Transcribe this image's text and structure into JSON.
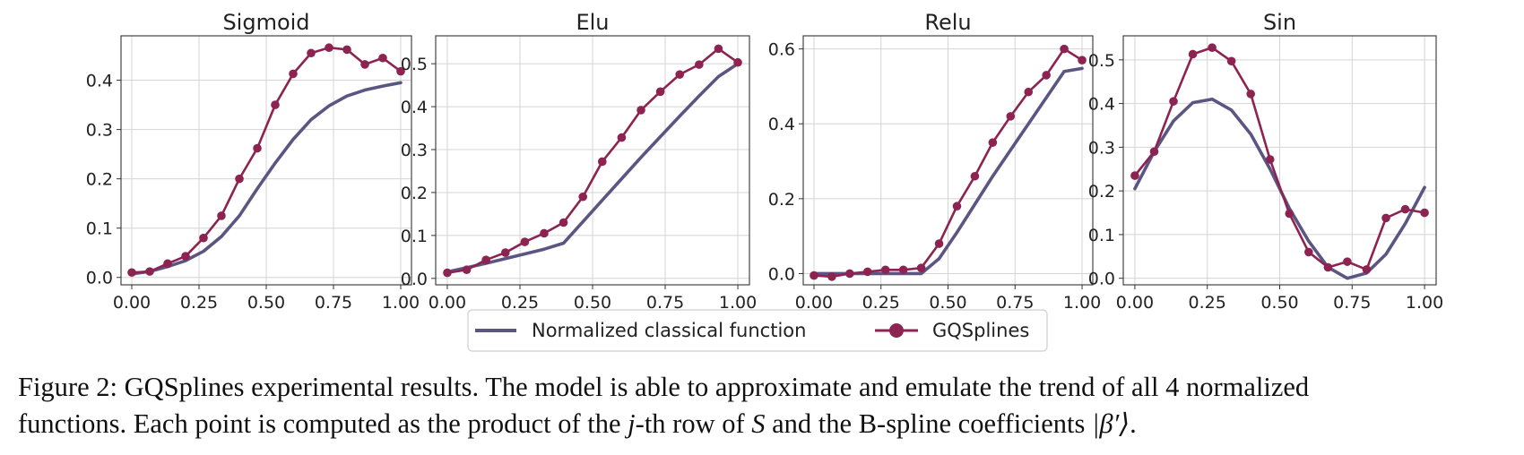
{
  "figure": {
    "caption": {
      "line1": "Figure 2: GQSplines experimental results. The model is able to approximate and emulate the trend of all 4 normalized",
      "line2_a": "functions. Each point is computed as the product of the ",
      "line2_j": "j",
      "line2_b": "-th row of ",
      "line2_S": "S",
      "line2_c": " and the B-spline coefficients ",
      "line2_beta": "|β′⟩",
      "line2_d": "."
    }
  },
  "legend": {
    "placement": "bottom-center",
    "entries": [
      "Normalized classical function",
      "GQSplines"
    ]
  },
  "colors": {
    "classical": "#5b5582",
    "gqsplines": "#8c2350",
    "grid": "#d4d4d4"
  },
  "chart_data": [
    {
      "type": "line",
      "title": "Sigmoid",
      "xlim": [
        -0.04,
        1.04
      ],
      "ylim": [
        -0.015,
        0.49
      ],
      "xticks": [
        "0.00",
        "0.25",
        "0.50",
        "0.75",
        "1.00"
      ],
      "xtick_values": [
        0,
        0.25,
        0.5,
        0.75,
        1.0
      ],
      "yticks": [
        "0.0",
        "0.1",
        "0.2",
        "0.3",
        "0.4"
      ],
      "ytick_values": [
        0,
        0.1,
        0.2,
        0.3,
        0.4
      ],
      "grid": true,
      "x": [
        0,
        0.0667,
        0.1333,
        0.2,
        0.2667,
        0.3333,
        0.4,
        0.4667,
        0.5333,
        0.6,
        0.6667,
        0.7333,
        0.8,
        0.8667,
        0.9333,
        1.0
      ],
      "series": [
        {
          "name": "Normalized classical function",
          "values": [
            0.007,
            0.012,
            0.022,
            0.034,
            0.053,
            0.083,
            0.125,
            0.18,
            0.232,
            0.28,
            0.32,
            0.348,
            0.368,
            0.38,
            0.388,
            0.395
          ]
        },
        {
          "name": "GQSplines",
          "values": [
            0.01,
            0.012,
            0.028,
            0.043,
            0.08,
            0.125,
            0.2,
            0.262,
            0.35,
            0.413,
            0.455,
            0.466,
            0.462,
            0.432,
            0.445,
            0.418
          ]
        }
      ]
    },
    {
      "type": "line",
      "title": "Elu",
      "xlim": [
        -0.04,
        1.04
      ],
      "ylim": [
        -0.015,
        0.565
      ],
      "xticks": [
        "0.00",
        "0.25",
        "0.50",
        "0.75",
        "1.00"
      ],
      "xtick_values": [
        0,
        0.25,
        0.5,
        0.75,
        1.0
      ],
      "yticks": [
        "0.0",
        "0.1",
        "0.2",
        "0.3",
        "0.4",
        "0.5"
      ],
      "ytick_values": [
        0,
        0.1,
        0.2,
        0.3,
        0.4,
        0.5
      ],
      "grid": true,
      "x": [
        0,
        0.0667,
        0.1333,
        0.2,
        0.2667,
        0.3333,
        0.4,
        0.4667,
        0.5333,
        0.6,
        0.6667,
        0.7333,
        0.8,
        0.8667,
        0.9333,
        1.0
      ],
      "series": [
        {
          "name": "Normalized classical function",
          "values": [
            0.015,
            0.025,
            0.035,
            0.046,
            0.057,
            0.068,
            0.082,
            0.132,
            0.182,
            0.232,
            0.282,
            0.33,
            0.378,
            0.425,
            0.47,
            0.5
          ]
        },
        {
          "name": "GQSplines",
          "values": [
            0.013,
            0.02,
            0.043,
            0.06,
            0.085,
            0.105,
            0.13,
            0.19,
            0.272,
            0.328,
            0.392,
            0.435,
            0.475,
            0.498,
            0.535,
            0.503
          ]
        }
      ]
    },
    {
      "type": "line",
      "title": "Relu",
      "xlim": [
        -0.04,
        1.04
      ],
      "ylim": [
        -0.03,
        0.635
      ],
      "xticks": [
        "0.00",
        "0.25",
        "0.50",
        "0.75",
        "1.00"
      ],
      "xtick_values": [
        0,
        0.25,
        0.5,
        0.75,
        1.0
      ],
      "yticks": [
        "0.0",
        "0.2",
        "0.4",
        "0.6"
      ],
      "ytick_values": [
        0,
        0.2,
        0.4,
        0.6
      ],
      "grid": true,
      "x": [
        0,
        0.0667,
        0.1333,
        0.2,
        0.2667,
        0.3333,
        0.4,
        0.4667,
        0.5333,
        0.6,
        0.6667,
        0.7333,
        0.8,
        0.8667,
        0.9333,
        1.0
      ],
      "series": [
        {
          "name": "Normalized classical function",
          "values": [
            0.0,
            0.0,
            0.0,
            0.0,
            0.0,
            0.0,
            0.0,
            0.04,
            0.11,
            0.185,
            0.26,
            0.33,
            0.4,
            0.47,
            0.54,
            0.548
          ]
        },
        {
          "name": "GQSplines",
          "values": [
            -0.005,
            -0.008,
            0.0,
            0.005,
            0.01,
            0.01,
            0.015,
            0.08,
            0.18,
            0.26,
            0.35,
            0.42,
            0.485,
            0.53,
            0.6,
            0.57
          ]
        }
      ]
    },
    {
      "type": "line",
      "title": "Sin",
      "xlim": [
        -0.04,
        1.04
      ],
      "ylim": [
        -0.015,
        0.555
      ],
      "xticks": [
        "0.00",
        "0.25",
        "0.50",
        "0.75",
        "1.00"
      ],
      "xtick_values": [
        0,
        0.25,
        0.5,
        0.75,
        1.0
      ],
      "yticks": [
        "0.0",
        "0.1",
        "0.2",
        "0.3",
        "0.4",
        "0.5"
      ],
      "ytick_values": [
        0,
        0.1,
        0.2,
        0.3,
        0.4,
        0.5
      ],
      "grid": true,
      "x": [
        0,
        0.0667,
        0.1333,
        0.2,
        0.2667,
        0.3333,
        0.4,
        0.4667,
        0.5333,
        0.6,
        0.6667,
        0.7333,
        0.8,
        0.8667,
        0.9333,
        1.0
      ],
      "series": [
        {
          "name": "Normalized classical function",
          "values": [
            0.205,
            0.29,
            0.36,
            0.402,
            0.41,
            0.385,
            0.33,
            0.25,
            0.16,
            0.085,
            0.025,
            0.0,
            0.012,
            0.055,
            0.125,
            0.208
          ]
        },
        {
          "name": "GQSplines",
          "values": [
            0.235,
            0.29,
            0.405,
            0.513,
            0.528,
            0.497,
            0.422,
            0.272,
            0.148,
            0.06,
            0.025,
            0.038,
            0.02,
            0.138,
            0.158,
            0.15
          ]
        }
      ]
    }
  ]
}
